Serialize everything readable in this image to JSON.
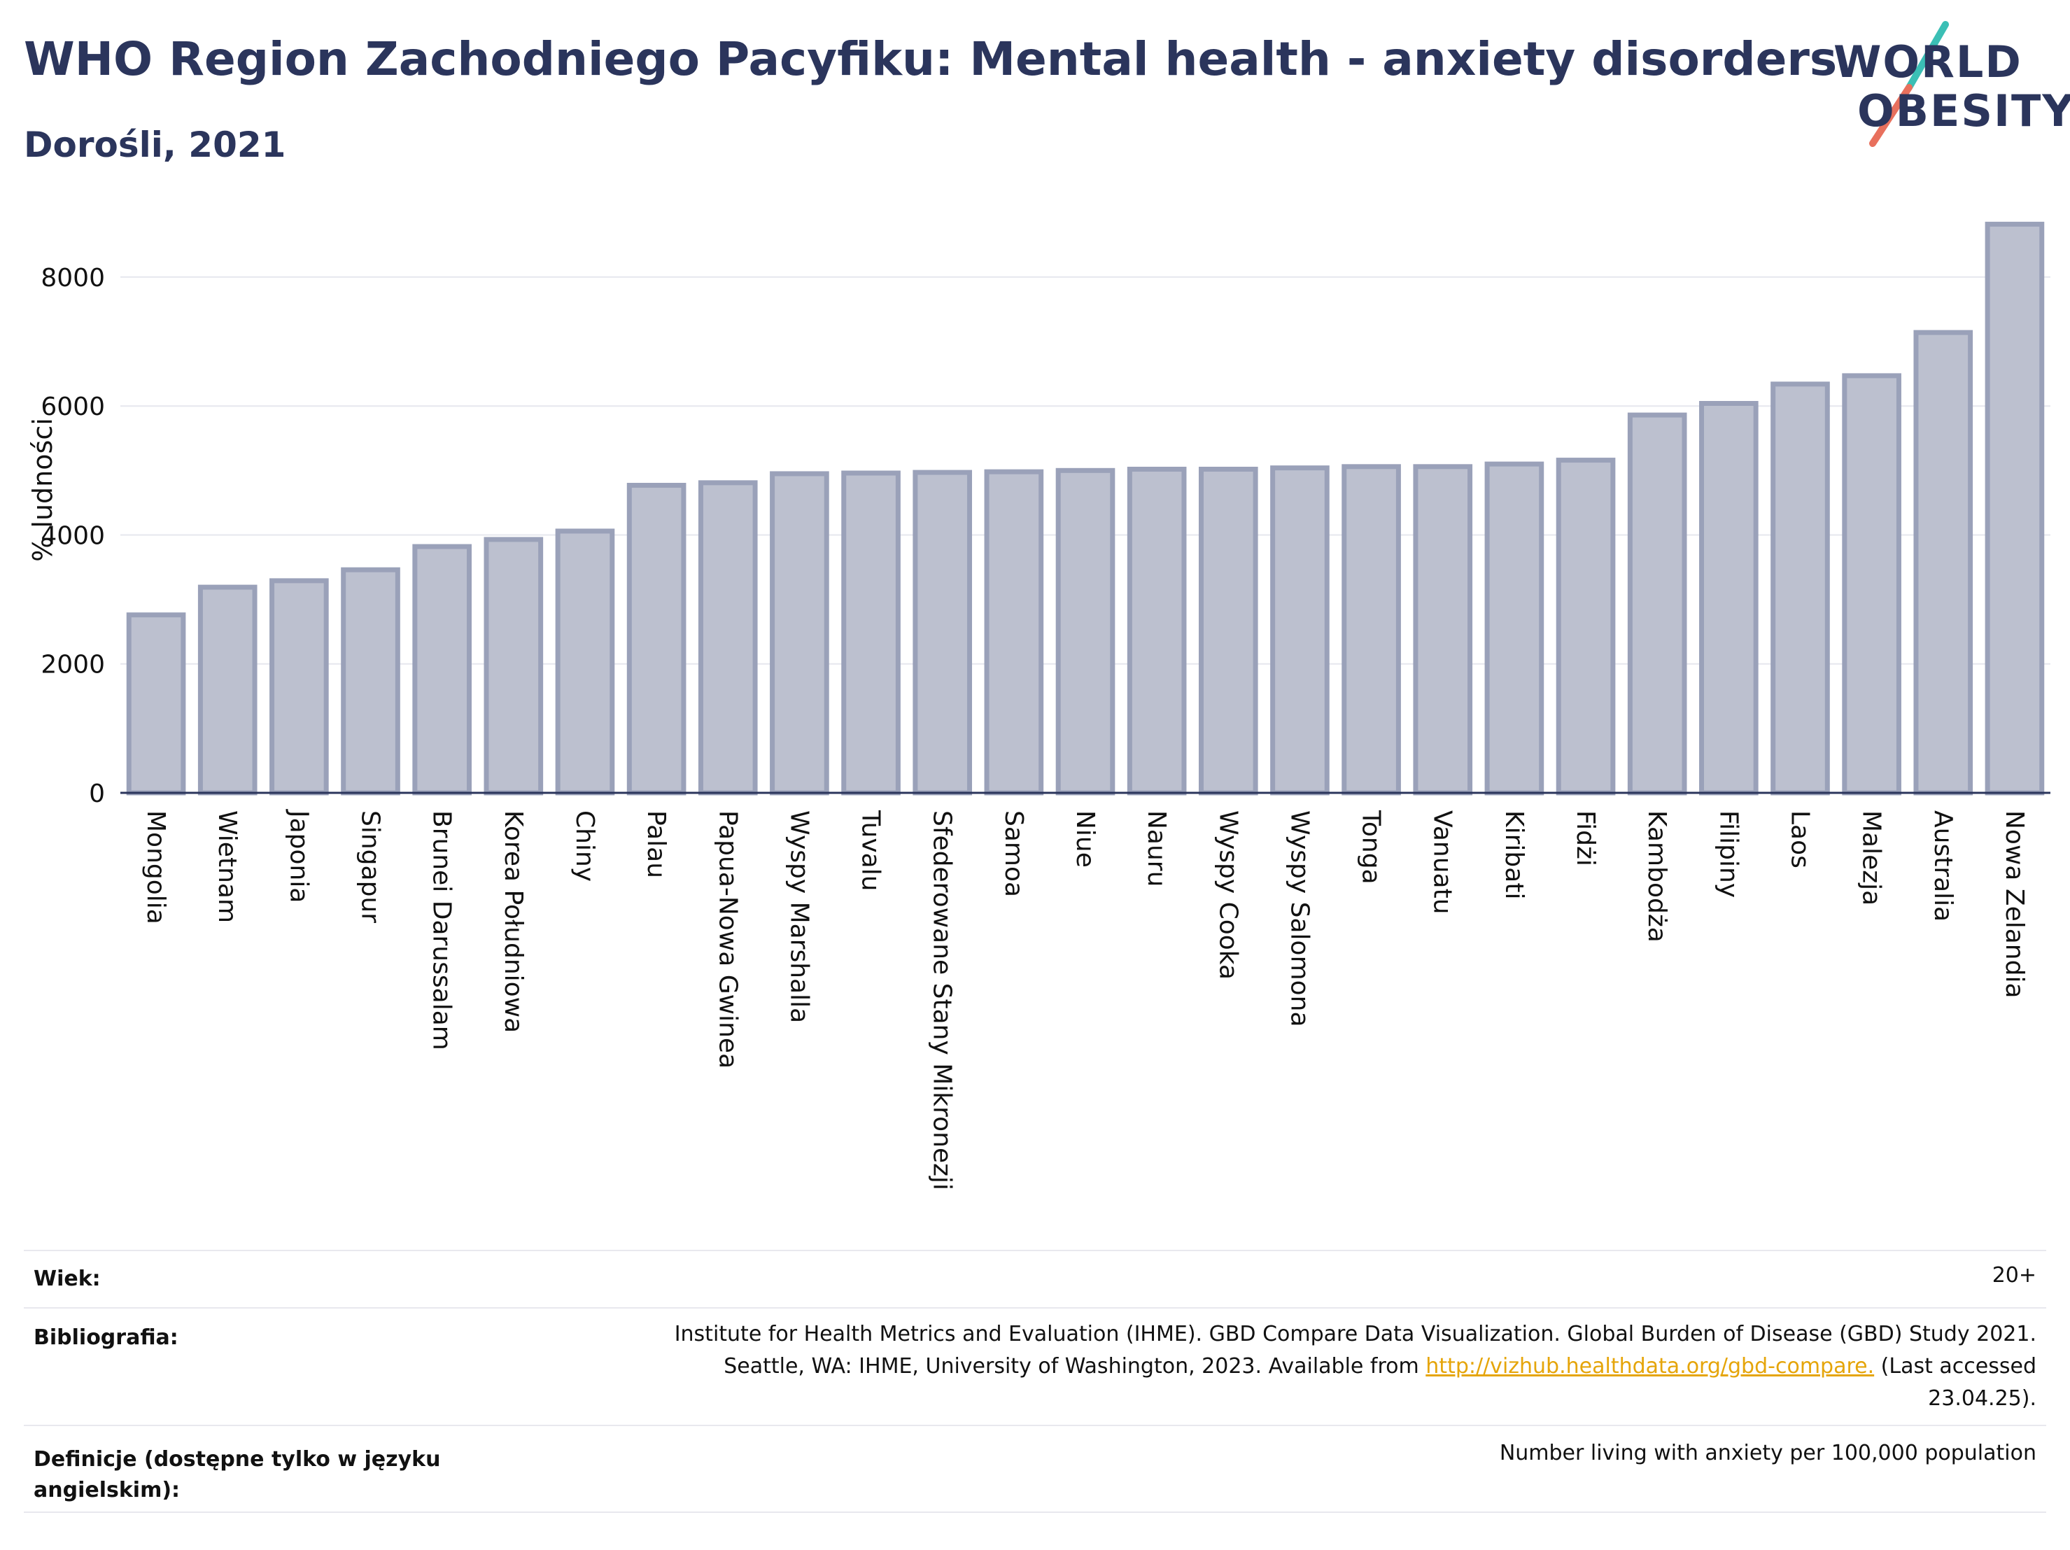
{
  "header": {
    "title": "WHO Region Zachodniego Pacyfiku: Mental health - anxiety disorders",
    "subtitle": "Dorośli, 2021"
  },
  "logo": {
    "line1": "WORLD",
    "line2": "OBESITY",
    "accent_teal": "#3bbfb5",
    "accent_coral": "#e8705d"
  },
  "colors": {
    "bar_fill": "#bcc0cf",
    "bar_stroke": "#9aa1b9",
    "axis": "#2b355c",
    "title": "#2b355c",
    "link": "#e5a50a"
  },
  "chart_data": {
    "type": "bar",
    "title": "",
    "ylabel": "% ludności",
    "ylim": [
      0,
      8900
    ],
    "yticks": [
      0,
      2000,
      4000,
      6000,
      8000
    ],
    "grid": true,
    "categories": [
      "Mongolia",
      "Wietnam",
      "Japonia",
      "Singapur",
      "Brunei Darussalam",
      "Korea Południowa",
      "Chiny",
      "Palau",
      "Papua-Nowa Gwinea",
      "Wyspy Marshalla",
      "Tuvalu",
      "Sfederowane Stany Mikronezji",
      "Samoa",
      "Niue",
      "Nauru",
      "Wyspy Cooka",
      "Wyspy Salomona",
      "Tonga",
      "Vanuatu",
      "Kiribati",
      "Fidżi",
      "Kambodża",
      "Filipiny",
      "Laos",
      "Malezja",
      "Australia",
      "Nowa Zelandia"
    ],
    "values": [
      2760,
      3190,
      3290,
      3460,
      3820,
      3930,
      4060,
      4770,
      4810,
      4950,
      4960,
      4970,
      4980,
      5000,
      5020,
      5020,
      5040,
      5060,
      5060,
      5100,
      5160,
      5860,
      6040,
      6340,
      6470,
      7140,
      8820
    ]
  },
  "meta": {
    "age_label": "Wiek:",
    "age_value": "20+",
    "bib_label": "Bibliografia:",
    "bib_line1": "Institute for Health Metrics and Evaluation (IHME). GBD Compare Data Visualization. Global Burden of Disease (GBD) Study 2021.",
    "bib_line2_pre": "Seattle, WA: IHME, University of Washington, 2023. Available from ",
    "bib_link": "http://vizhub.healthdata.org/gbd-compare.",
    "bib_line2_post": " (Last accessed",
    "bib_line3": "23.04.25).",
    "def_label_line1": "Definicje (dostępne tylko w języku",
    "def_label_line2": "angielskim):",
    "def_value": "Number living with anxiety per 100,000 population"
  }
}
